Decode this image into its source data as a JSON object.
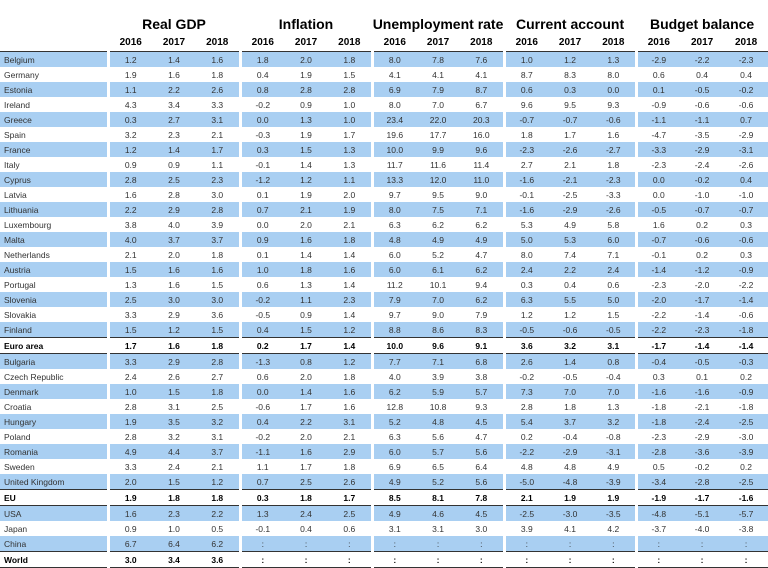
{
  "header": {
    "groups": [
      {
        "title": "Real GDP",
        "years": [
          "2016",
          "2017",
          "2018"
        ]
      },
      {
        "title": "Inflation",
        "years": [
          "2016",
          "2017",
          "2018"
        ]
      },
      {
        "title": "Unemployment rate",
        "years": [
          "2016",
          "2017",
          "2018"
        ]
      },
      {
        "title": "Current account",
        "years": [
          "2016",
          "2017",
          "2018"
        ]
      },
      {
        "title": "Budget balance",
        "years": [
          "2016",
          "2017",
          "2018"
        ]
      }
    ]
  },
  "table": {
    "rows": [
      {
        "label": "Belgium",
        "shaded": true,
        "bold": false,
        "values": [
          "1.2",
          "1.4",
          "1.6",
          "1.8",
          "2.0",
          "1.8",
          "8.0",
          "7.8",
          "7.6",
          "1.0",
          "1.2",
          "1.3",
          "-2.9",
          "-2.2",
          "-2.3"
        ]
      },
      {
        "label": "Germany",
        "shaded": false,
        "bold": false,
        "values": [
          "1.9",
          "1.6",
          "1.8",
          "0.4",
          "1.9",
          "1.5",
          "4.1",
          "4.1",
          "4.1",
          "8.7",
          "8.3",
          "8.0",
          "0.6",
          "0.4",
          "0.4"
        ]
      },
      {
        "label": "Estonia",
        "shaded": true,
        "bold": false,
        "values": [
          "1.1",
          "2.2",
          "2.6",
          "0.8",
          "2.8",
          "2.8",
          "6.9",
          "7.9",
          "8.7",
          "0.6",
          "0.3",
          "0.0",
          "0.1",
          "-0.5",
          "-0.2"
        ]
      },
      {
        "label": "Ireland",
        "shaded": false,
        "bold": false,
        "values": [
          "4.3",
          "3.4",
          "3.3",
          "-0.2",
          "0.9",
          "1.0",
          "8.0",
          "7.0",
          "6.7",
          "9.6",
          "9.5",
          "9.3",
          "-0.9",
          "-0.6",
          "-0.6"
        ]
      },
      {
        "label": "Greece",
        "shaded": true,
        "bold": false,
        "values": [
          "0.3",
          "2.7",
          "3.1",
          "0.0",
          "1.3",
          "1.0",
          "23.4",
          "22.0",
          "20.3",
          "-0.7",
          "-0.7",
          "-0.6",
          "-1.1",
          "-1.1",
          "0.7"
        ]
      },
      {
        "label": "Spain",
        "shaded": false,
        "bold": false,
        "values": [
          "3.2",
          "2.3",
          "2.1",
          "-0.3",
          "1.9",
          "1.7",
          "19.6",
          "17.7",
          "16.0",
          "1.8",
          "1.7",
          "1.6",
          "-4.7",
          "-3.5",
          "-2.9"
        ]
      },
      {
        "label": "France",
        "shaded": true,
        "bold": false,
        "values": [
          "1.2",
          "1.4",
          "1.7",
          "0.3",
          "1.5",
          "1.3",
          "10.0",
          "9.9",
          "9.6",
          "-2.3",
          "-2.6",
          "-2.7",
          "-3.3",
          "-2.9",
          "-3.1"
        ]
      },
      {
        "label": "Italy",
        "shaded": false,
        "bold": false,
        "values": [
          "0.9",
          "0.9",
          "1.1",
          "-0.1",
          "1.4",
          "1.3",
          "11.7",
          "11.6",
          "11.4",
          "2.7",
          "2.1",
          "1.8",
          "-2.3",
          "-2.4",
          "-2.6"
        ]
      },
      {
        "label": "Cyprus",
        "shaded": true,
        "bold": false,
        "values": [
          "2.8",
          "2.5",
          "2.3",
          "-1.2",
          "1.2",
          "1.1",
          "13.3",
          "12.0",
          "11.0",
          "-1.6",
          "-2.1",
          "-2.3",
          "0.0",
          "-0.2",
          "0.4"
        ]
      },
      {
        "label": "Latvia",
        "shaded": false,
        "bold": false,
        "values": [
          "1.6",
          "2.8",
          "3.0",
          "0.1",
          "1.9",
          "2.0",
          "9.7",
          "9.5",
          "9.0",
          "-0.1",
          "-2.5",
          "-3.3",
          "0.0",
          "-1.0",
          "-1.0"
        ]
      },
      {
        "label": "Lithuania",
        "shaded": true,
        "bold": false,
        "values": [
          "2.2",
          "2.9",
          "2.8",
          "0.7",
          "2.1",
          "1.9",
          "8.0",
          "7.5",
          "7.1",
          "-1.6",
          "-2.9",
          "-2.6",
          "-0.5",
          "-0.7",
          "-0.7"
        ]
      },
      {
        "label": "Luxembourg",
        "shaded": false,
        "bold": false,
        "values": [
          "3.8",
          "4.0",
          "3.9",
          "0.0",
          "2.0",
          "2.1",
          "6.3",
          "6.2",
          "6.2",
          "5.3",
          "4.9",
          "5.8",
          "1.6",
          "0.2",
          "0.3"
        ]
      },
      {
        "label": "Malta",
        "shaded": true,
        "bold": false,
        "values": [
          "4.0",
          "3.7",
          "3.7",
          "0.9",
          "1.6",
          "1.8",
          "4.8",
          "4.9",
          "4.9",
          "5.0",
          "5.3",
          "6.0",
          "-0.7",
          "-0.6",
          "-0.6"
        ]
      },
      {
        "label": "Netherlands",
        "shaded": false,
        "bold": false,
        "values": [
          "2.1",
          "2.0",
          "1.8",
          "0.1",
          "1.4",
          "1.4",
          "6.0",
          "5.2",
          "4.7",
          "8.0",
          "7.4",
          "7.1",
          "-0.1",
          "0.2",
          "0.3"
        ]
      },
      {
        "label": "Austria",
        "shaded": true,
        "bold": false,
        "values": [
          "1.5",
          "1.6",
          "1.6",
          "1.0",
          "1.8",
          "1.6",
          "6.0",
          "6.1",
          "6.2",
          "2.4",
          "2.2",
          "2.4",
          "-1.4",
          "-1.2",
          "-0.9"
        ]
      },
      {
        "label": "Portugal",
        "shaded": false,
        "bold": false,
        "values": [
          "1.3",
          "1.6",
          "1.5",
          "0.6",
          "1.3",
          "1.4",
          "11.2",
          "10.1",
          "9.4",
          "0.3",
          "0.4",
          "0.6",
          "-2.3",
          "-2.0",
          "-2.2"
        ]
      },
      {
        "label": "Slovenia",
        "shaded": true,
        "bold": false,
        "values": [
          "2.5",
          "3.0",
          "3.0",
          "-0.2",
          "1.1",
          "2.3",
          "7.9",
          "7.0",
          "6.2",
          "6.3",
          "5.5",
          "5.0",
          "-2.0",
          "-1.7",
          "-1.4"
        ]
      },
      {
        "label": "Slovakia",
        "shaded": false,
        "bold": false,
        "values": [
          "3.3",
          "2.9",
          "3.6",
          "-0.5",
          "0.9",
          "1.4",
          "9.7",
          "9.0",
          "7.9",
          "1.2",
          "1.2",
          "1.5",
          "-2.2",
          "-1.4",
          "-0.6"
        ]
      },
      {
        "label": "Finland",
        "shaded": true,
        "bold": false,
        "values": [
          "1.5",
          "1.2",
          "1.5",
          "0.4",
          "1.5",
          "1.2",
          "8.8",
          "8.6",
          "8.3",
          "-0.5",
          "-0.6",
          "-0.5",
          "-2.2",
          "-2.3",
          "-1.8"
        ]
      },
      {
        "label": "Euro area",
        "shaded": false,
        "bold": true,
        "values": [
          "1.7",
          "1.6",
          "1.8",
          "0.2",
          "1.7",
          "1.4",
          "10.0",
          "9.6",
          "9.1",
          "3.6",
          "3.2",
          "3.1",
          "-1.7",
          "-1.4",
          "-1.4"
        ]
      },
      {
        "label": "Bulgaria",
        "shaded": true,
        "bold": false,
        "values": [
          "3.3",
          "2.9",
          "2.8",
          "-1.3",
          "0.8",
          "1.2",
          "7.7",
          "7.1",
          "6.8",
          "2.6",
          "1.4",
          "0.8",
          "-0.4",
          "-0.5",
          "-0.3"
        ]
      },
      {
        "label": "Czech Republic",
        "shaded": false,
        "bold": false,
        "values": [
          "2.4",
          "2.6",
          "2.7",
          "0.6",
          "2.0",
          "1.8",
          "4.0",
          "3.9",
          "3.8",
          "-0.2",
          "-0.5",
          "-0.4",
          "0.3",
          "0.1",
          "0.2"
        ]
      },
      {
        "label": "Denmark",
        "shaded": true,
        "bold": false,
        "values": [
          "1.0",
          "1.5",
          "1.8",
          "0.0",
          "1.4",
          "1.6",
          "6.2",
          "5.9",
          "5.7",
          "7.3",
          "7.0",
          "7.0",
          "-1.6",
          "-1.6",
          "-0.9"
        ]
      },
      {
        "label": "Croatia",
        "shaded": false,
        "bold": false,
        "values": [
          "2.8",
          "3.1",
          "2.5",
          "-0.6",
          "1.7",
          "1.6",
          "12.8",
          "10.8",
          "9.3",
          "2.8",
          "1.8",
          "1.3",
          "-1.8",
          "-2.1",
          "-1.8"
        ]
      },
      {
        "label": "Hungary",
        "shaded": true,
        "bold": false,
        "values": [
          "1.9",
          "3.5",
          "3.2",
          "0.4",
          "2.2",
          "3.1",
          "5.2",
          "4.8",
          "4.5",
          "5.4",
          "3.7",
          "3.2",
          "-1.8",
          "-2.4",
          "-2.5"
        ]
      },
      {
        "label": "Poland",
        "shaded": false,
        "bold": false,
        "values": [
          "2.8",
          "3.2",
          "3.1",
          "-0.2",
          "2.0",
          "2.1",
          "6.3",
          "5.6",
          "4.7",
          "0.2",
          "-0.4",
          "-0.8",
          "-2.3",
          "-2.9",
          "-3.0"
        ]
      },
      {
        "label": "Romania",
        "shaded": true,
        "bold": false,
        "values": [
          "4.9",
          "4.4",
          "3.7",
          "-1.1",
          "1.6",
          "2.9",
          "6.0",
          "5.7",
          "5.6",
          "-2.2",
          "-2.9",
          "-3.1",
          "-2.8",
          "-3.6",
          "-3.9"
        ]
      },
      {
        "label": "Sweden",
        "shaded": false,
        "bold": false,
        "values": [
          "3.3",
          "2.4",
          "2.1",
          "1.1",
          "1.7",
          "1.8",
          "6.9",
          "6.5",
          "6.4",
          "4.8",
          "4.8",
          "4.9",
          "0.5",
          "-0.2",
          "0.2"
        ]
      },
      {
        "label": "United Kingdom",
        "shaded": true,
        "bold": false,
        "values": [
          "2.0",
          "1.5",
          "1.2",
          "0.7",
          "2.5",
          "2.6",
          "4.9",
          "5.2",
          "5.6",
          "-5.0",
          "-4.8",
          "-3.9",
          "-3.4",
          "-2.8",
          "-2.5"
        ]
      },
      {
        "label": "EU",
        "shaded": false,
        "bold": true,
        "values": [
          "1.9",
          "1.8",
          "1.8",
          "0.3",
          "1.8",
          "1.7",
          "8.5",
          "8.1",
          "7.8",
          "2.1",
          "1.9",
          "1.9",
          "-1.9",
          "-1.7",
          "-1.6"
        ]
      },
      {
        "label": "USA",
        "shaded": true,
        "bold": false,
        "values": [
          "1.6",
          "2.3",
          "2.2",
          "1.3",
          "2.4",
          "2.5",
          "4.9",
          "4.6",
          "4.5",
          "-2.5",
          "-3.0",
          "-3.5",
          "-4.8",
          "-5.1",
          "-5.7"
        ]
      },
      {
        "label": "Japan",
        "shaded": false,
        "bold": false,
        "values": [
          "0.9",
          "1.0",
          "0.5",
          "-0.1",
          "0.4",
          "0.6",
          "3.1",
          "3.1",
          "3.0",
          "3.9",
          "4.1",
          "4.2",
          "-3.7",
          "-4.0",
          "-3.8"
        ]
      },
      {
        "label": "China",
        "shaded": true,
        "bold": false,
        "values": [
          "6.7",
          "6.4",
          "6.2",
          ":",
          ":",
          ":",
          ":",
          ":",
          ":",
          ":",
          ":",
          ":",
          ":",
          ":",
          ":"
        ]
      },
      {
        "label": "World",
        "shaded": false,
        "bold": true,
        "values": [
          "3.0",
          "3.4",
          "3.6",
          ":",
          ":",
          ":",
          ":",
          ":",
          ":",
          ":",
          ":",
          ":",
          ":",
          ":",
          ":"
        ]
      }
    ]
  }
}
